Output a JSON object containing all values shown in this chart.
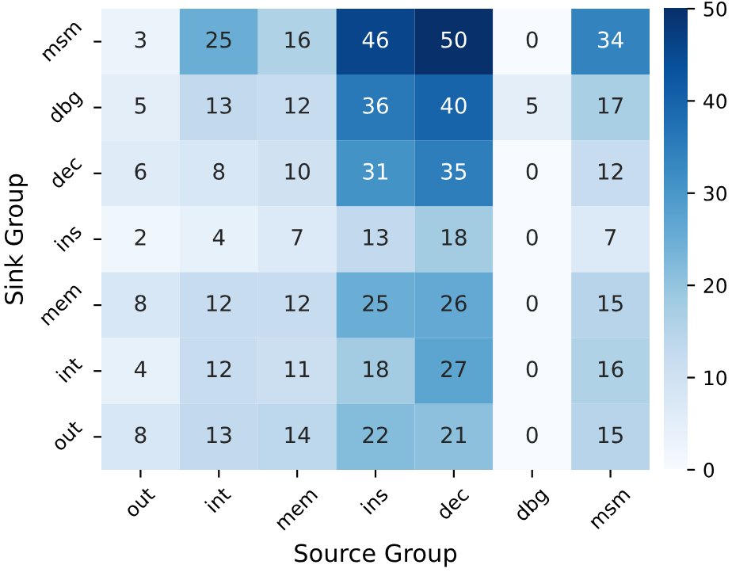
{
  "chart_data": {
    "type": "heatmap",
    "xlabel": "Source Group",
    "ylabel": "Sink Group",
    "categories": [
      "out",
      "int",
      "mem",
      "ins",
      "dec",
      "dbg",
      "msm"
    ],
    "y_categories": [
      "msm",
      "dbg",
      "dec",
      "ins",
      "mem",
      "int",
      "out"
    ],
    "cells": [
      [
        3,
        25,
        16,
        46,
        50,
        0,
        34
      ],
      [
        5,
        13,
        12,
        36,
        40,
        5,
        17
      ],
      [
        6,
        8,
        10,
        31,
        35,
        0,
        12
      ],
      [
        2,
        4,
        7,
        13,
        18,
        0,
        7
      ],
      [
        8,
        12,
        12,
        25,
        26,
        0,
        15
      ],
      [
        4,
        12,
        11,
        18,
        27,
        0,
        16
      ],
      [
        8,
        13,
        14,
        22,
        21,
        0,
        15
      ]
    ],
    "clim": [
      0,
      50
    ],
    "cticks": [
      0,
      10,
      20,
      30,
      40,
      50
    ],
    "data_labels": true
  }
}
